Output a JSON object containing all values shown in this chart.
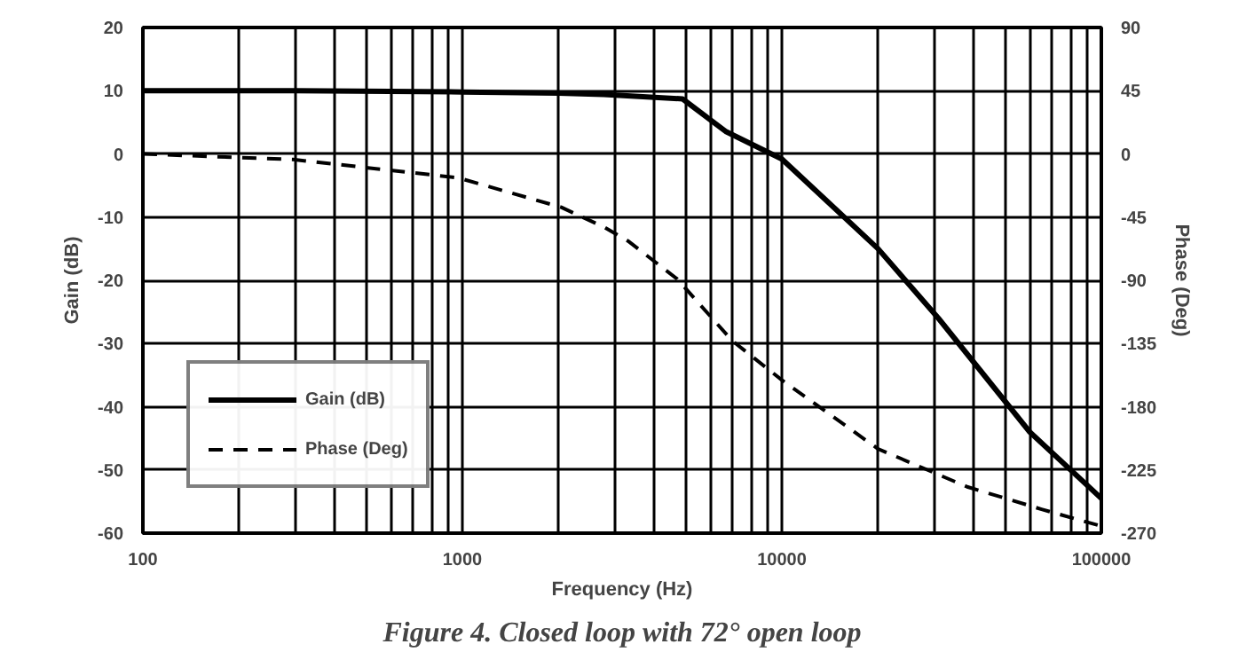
{
  "chart_data": {
    "type": "line",
    "title": "Figure 4. Closed loop with 72° open loop",
    "xlabel": "Frequency (Hz)",
    "ylabel": "Gain (dB)",
    "y2label": "Phase (Deg)",
    "log": "x",
    "xlim": [
      100,
      100000
    ],
    "xticks": [
      100,
      1000,
      10000,
      100000
    ],
    "ylim": [
      -60,
      20
    ],
    "yticks": [
      -60,
      -50,
      -40,
      -30,
      -20,
      -10,
      0,
      10,
      20
    ],
    "y2lim": [
      -270,
      90
    ],
    "y2ticks": [
      -270,
      -225,
      -180,
      -135,
      -90,
      -45,
      0,
      45,
      90
    ],
    "grid": true,
    "legend": "bottom left",
    "series": [
      {
        "name": "Gain (dB)",
        "color": "#000000",
        "line_style": "solid",
        "x": [
          100,
          300,
          1000,
          2000,
          2770,
          4890,
          6700,
          10000,
          20000,
          30900,
          59700,
          100000
        ],
        "values": [
          10,
          10,
          9.8,
          9.6,
          9.4,
          8.7,
          3.5,
          -0.8,
          -15,
          -26,
          -44,
          -54.5
        ]
      },
      {
        "name": "Phase (Deg)",
        "color": "#000000",
        "line_style": "dashed",
        "axis": "y2",
        "x": [
          100,
          295,
          970,
          2040,
          2770,
          3300,
          4700,
          6990,
          10000,
          20000,
          38000,
          65000,
          100000
        ],
        "values": [
          0,
          -4,
          -17,
          -38,
          -52,
          -62,
          -89,
          -133,
          -161,
          -210,
          -237,
          -253,
          -265
        ]
      }
    ]
  }
}
